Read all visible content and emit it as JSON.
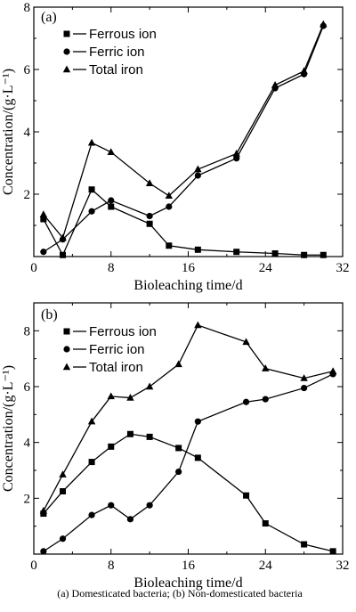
{
  "chart_data": [
    {
      "panel": "(a)",
      "type": "line",
      "xlabel": "Bioleaching time/d",
      "ylabel": "Concentration/(g·L⁻¹)",
      "xlim": [
        0,
        32
      ],
      "ylim": [
        0,
        8
      ],
      "xticks": [
        0,
        8,
        16,
        24,
        32
      ],
      "yticks": [
        2,
        4,
        6,
        8
      ],
      "legend_position": "top-left",
      "series": [
        {
          "name": "Ferrous ion",
          "marker": "square",
          "x": [
            1,
            3,
            6,
            8,
            12,
            14,
            17,
            21,
            25,
            28,
            30
          ],
          "y": [
            1.2,
            0.05,
            2.15,
            1.6,
            1.05,
            0.35,
            0.22,
            0.15,
            0.1,
            0.05,
            0.05
          ]
        },
        {
          "name": "Ferric ion",
          "marker": "circle",
          "x": [
            1,
            3,
            6,
            8,
            12,
            14,
            17,
            21,
            25,
            28,
            30
          ],
          "y": [
            0.15,
            0.55,
            1.45,
            1.8,
            1.3,
            1.6,
            2.6,
            3.15,
            5.4,
            5.85,
            7.4
          ]
        },
        {
          "name": "Total iron",
          "marker": "triangle",
          "x": [
            1,
            3,
            6,
            8,
            12,
            14,
            17,
            21,
            25,
            28,
            30
          ],
          "y": [
            1.35,
            0.6,
            3.65,
            3.35,
            2.35,
            1.95,
            2.8,
            3.3,
            5.5,
            5.95,
            7.45
          ]
        }
      ]
    },
    {
      "panel": "(b)",
      "type": "line",
      "xlabel": "Bioleaching time/d",
      "ylabel": "Concentration/(g·L⁻¹)",
      "xlim": [
        0,
        32
      ],
      "ylim": [
        0,
        9
      ],
      "xticks": [
        0,
        8,
        16,
        24,
        32
      ],
      "yticks": [
        2,
        4,
        6,
        8
      ],
      "legend_position": "top-left",
      "series": [
        {
          "name": "Ferrous ion",
          "marker": "square",
          "x": [
            1,
            3,
            6,
            8,
            10,
            12,
            15,
            17,
            22,
            24,
            28,
            31
          ],
          "y": [
            1.45,
            2.25,
            3.3,
            3.85,
            4.3,
            4.2,
            3.8,
            3.45,
            2.1,
            1.1,
            0.35,
            0.1
          ]
        },
        {
          "name": "Ferric ion",
          "marker": "circle",
          "x": [
            1,
            3,
            6,
            8,
            10,
            12,
            15,
            17,
            22,
            24,
            28,
            31
          ],
          "y": [
            0.1,
            0.55,
            1.4,
            1.75,
            1.25,
            1.75,
            2.95,
            4.75,
            5.45,
            5.55,
            5.95,
            6.45
          ]
        },
        {
          "name": "Total iron",
          "marker": "triangle",
          "x": [
            1,
            3,
            6,
            8,
            10,
            12,
            15,
            17,
            22,
            24,
            28,
            31
          ],
          "y": [
            1.55,
            2.85,
            4.75,
            5.65,
            5.6,
            6.0,
            6.8,
            8.2,
            7.6,
            6.65,
            6.3,
            6.55
          ]
        }
      ]
    }
  ],
  "caption": "(a)  Domesticated bacteria; (b) Non-domesticated bacteria"
}
